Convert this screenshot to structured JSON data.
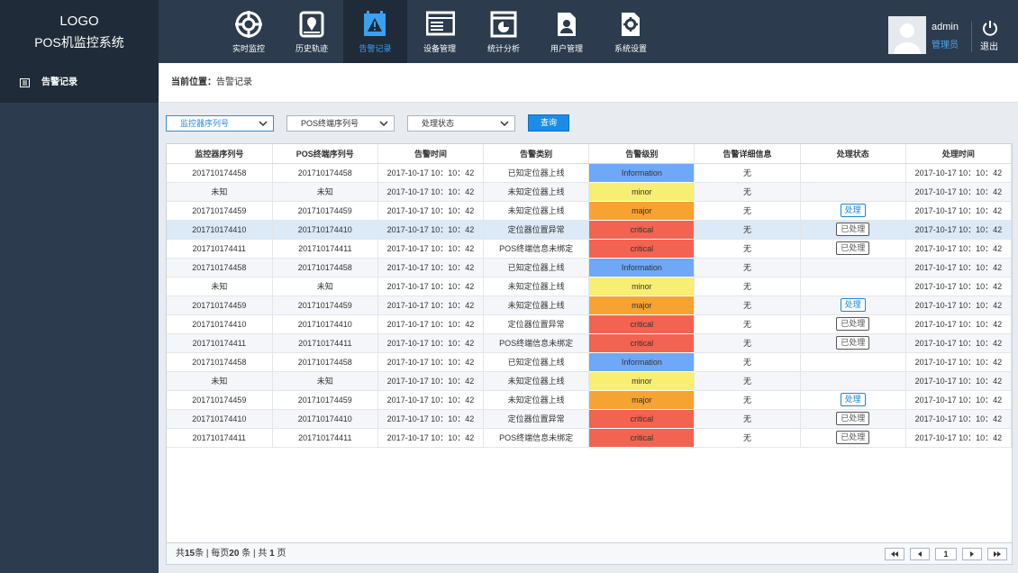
{
  "header": {
    "logo": "LOGO",
    "system_name": "POS机监控系统",
    "nav": [
      {
        "label": "实时监控"
      },
      {
        "label": "历史轨迹"
      },
      {
        "label": "告警记录",
        "active": true
      },
      {
        "label": "设备管理"
      },
      {
        "label": "统计分析"
      },
      {
        "label": "用户管理"
      },
      {
        "label": "系统设置"
      }
    ],
    "user": {
      "name": "admin",
      "role": "管理员",
      "logout": "退出"
    }
  },
  "sidebar": {
    "items": [
      "告警记录"
    ]
  },
  "breadcrumb": {
    "label": "当前位置：",
    "current": "告警记录"
  },
  "filters": {
    "selects": [
      "监控器序列号",
      "POS终端序列号",
      "处理状态"
    ],
    "button": "查询"
  },
  "table": {
    "columns": [
      "监控器序列号",
      "POS终端序列号",
      "告警时间",
      "告警类别",
      "告警级别",
      "告警详细信息",
      "处理状态",
      "处理时间"
    ],
    "rows": [
      {
        "cells": [
          "201710174458",
          "201710174458",
          "2017-10-17  10：10：42",
          "已知定位器上线",
          "Information",
          "无",
          null,
          "2017-10-17  10：10：42"
        ],
        "level_color": "#6ea8f7"
      },
      {
        "cells": [
          "未知",
          "未知",
          "2017-10-17  10：10：42",
          "未知定位器上线",
          "minor",
          "无",
          null,
          "2017-10-17  10：10：42"
        ],
        "level_color": "#f8ee72"
      },
      {
        "cells": [
          "201710174459",
          "201710174459",
          "2017-10-17  10：10：42",
          "未知定位器上线",
          "major",
          "无",
          "处理",
          "2017-10-17  10：10：42"
        ],
        "level_color": "#f6a332",
        "status_color": "#1a86d9"
      },
      {
        "cells": [
          "201710174410",
          "201710174410",
          "2017-10-17  10：10：42",
          "定位器位置异常",
          "critical",
          "无",
          "已处理",
          "2017-10-17  10：10：42"
        ],
        "level_color": "#f36351",
        "status_color": "#555555",
        "highlighted": true
      },
      {
        "cells": [
          "201710174411",
          "201710174411",
          "2017-10-17  10：10：42",
          "POS终端信息未绑定",
          "critical",
          "无",
          "已处理",
          "2017-10-17  10：10：42"
        ],
        "level_color": "#f36351",
        "status_color": "#555555"
      },
      {
        "cells": [
          "201710174458",
          "201710174458",
          "2017-10-17  10：10：42",
          "已知定位器上线",
          "Information",
          "无",
          null,
          "2017-10-17  10：10：42"
        ],
        "level_color": "#6ea8f7"
      },
      {
        "cells": [
          "未知",
          "未知",
          "2017-10-17  10：10：42",
          "未知定位器上线",
          "minor",
          "无",
          null,
          "2017-10-17  10：10：42"
        ],
        "level_color": "#f8ee72"
      },
      {
        "cells": [
          "201710174459",
          "201710174459",
          "2017-10-17  10：10：42",
          "未知定位器上线",
          "major",
          "无",
          "处理",
          "2017-10-17  10：10：42"
        ],
        "level_color": "#f6a332",
        "status_color": "#1a86d9"
      },
      {
        "cells": [
          "201710174410",
          "201710174410",
          "2017-10-17  10：10：42",
          "定位器位置异常",
          "critical",
          "无",
          "已处理",
          "2017-10-17  10：10：42"
        ],
        "level_color": "#f36351",
        "status_color": "#555555"
      },
      {
        "cells": [
          "201710174411",
          "201710174411",
          "2017-10-17  10：10：42",
          "POS终端信息未绑定",
          "critical",
          "无",
          "已处理",
          "2017-10-17  10：10：42"
        ],
        "level_color": "#f36351",
        "status_color": "#555555"
      },
      {
        "cells": [
          "201710174458",
          "201710174458",
          "2017-10-17  10：10：42",
          "已知定位器上线",
          "Information",
          "无",
          null,
          "2017-10-17  10：10：42"
        ],
        "level_color": "#6ea8f7"
      },
      {
        "cells": [
          "未知",
          "未知",
          "2017-10-17  10：10：42",
          "未知定位器上线",
          "minor",
          "无",
          null,
          "2017-10-17  10：10：42"
        ],
        "level_color": "#f8ee72"
      },
      {
        "cells": [
          "201710174459",
          "201710174459",
          "2017-10-17  10：10：42",
          "未知定位器上线",
          "major",
          "无",
          "处理",
          "2017-10-17  10：10：42"
        ],
        "level_color": "#f6a332",
        "status_color": "#1a86d9"
      },
      {
        "cells": [
          "201710174410",
          "201710174410",
          "2017-10-17  10：10：42",
          "定位器位置异常",
          "critical",
          "无",
          "已处理",
          "2017-10-17  10：10：42"
        ],
        "level_color": "#f36351",
        "status_color": "#555555"
      },
      {
        "cells": [
          "201710174411",
          "201710174411",
          "2017-10-17  10：10：42",
          "POS终端信息未绑定",
          "critical",
          "无",
          "已处理",
          "2017-10-17  10：10：42"
        ],
        "level_color": "#f36351",
        "status_color": "#555555"
      }
    ]
  },
  "footer": {
    "total_prefix": "共",
    "total": 15,
    "per_page_prefix": "条 | 每页",
    "per_page": 20,
    "pages_prefix": "条 | 共",
    "pages": 1,
    "pages_suffix": "页",
    "current_page": 1
  }
}
